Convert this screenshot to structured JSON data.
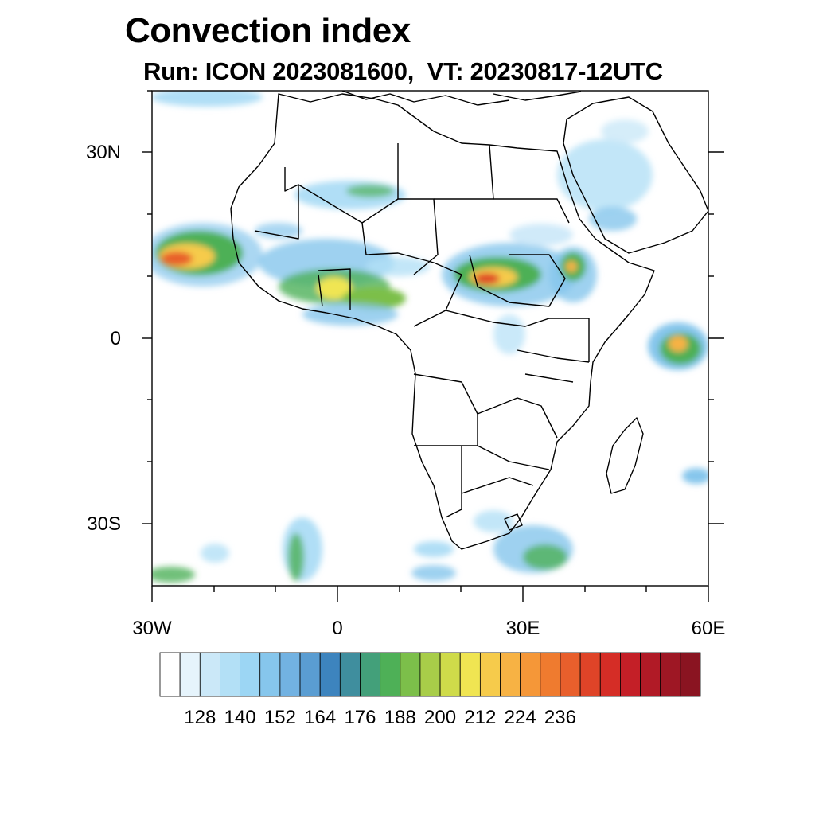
{
  "title": "Convection index",
  "subtitle": "Run: ICON 2023081600,  VT: 20230817-12UTC",
  "map": {
    "projection": "cylindrical-equidistant",
    "lon_range": [
      -30,
      60
    ],
    "lat_range": [
      -40,
      40
    ],
    "lat_labels": [
      "30N",
      "0",
      "30S"
    ],
    "lon_labels": [
      "30W",
      "0",
      "30E",
      "60E"
    ]
  },
  "colorbar": {
    "labels": [
      "128",
      "140",
      "152",
      "164",
      "176",
      "188",
      "200",
      "212",
      "224",
      "236"
    ],
    "colors": [
      "#ffffff",
      "#e6f4fc",
      "#cbe8f8",
      "#b3e0f6",
      "#9cd6f4",
      "#86c6ec",
      "#72b2e2",
      "#5a9dd2",
      "#3d84be",
      "#3f8e9e",
      "#43a07a",
      "#4eb057",
      "#7cbf4a",
      "#a8cd49",
      "#cfdb4a",
      "#f0e552",
      "#f6cb4b",
      "#f7b244",
      "#f59738",
      "#ef7b2f",
      "#e85f2c",
      "#df4428",
      "#d52d26",
      "#c41f27",
      "#b11a26",
      "#9e1724",
      "#8a1421"
    ]
  }
}
